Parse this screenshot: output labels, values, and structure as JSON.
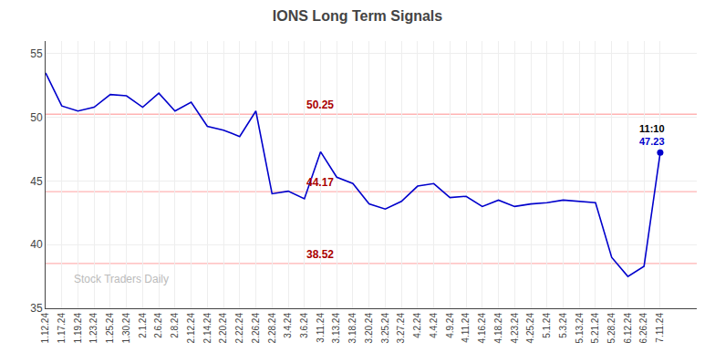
{
  "chart_data": {
    "type": "line",
    "title": "IONS Long Term Signals",
    "categories": [
      "1.12.24",
      "1.17.24",
      "1.19.24",
      "1.23.24",
      "1.25.24",
      "1.30.24",
      "2.1.24",
      "2.6.24",
      "2.8.24",
      "2.12.24",
      "2.14.24",
      "2.20.24",
      "2.22.24",
      "2.26.24",
      "2.28.24",
      "3.4.24",
      "3.6.24",
      "3.11.24",
      "3.13.24",
      "3.18.24",
      "3.20.24",
      "3.25.24",
      "3.27.24",
      "4.2.24",
      "4.4.24",
      "4.9.24",
      "4.11.24",
      "4.16.24",
      "4.18.24",
      "4.23.24",
      "4.25.24",
      "5.1.24",
      "5.3.24",
      "5.13.24",
      "5.21.24",
      "5.28.24",
      "6.12.24",
      "6.26.24",
      "7.11.24"
    ],
    "values": [
      53.5,
      50.9,
      50.5,
      50.8,
      51.8,
      51.7,
      50.8,
      51.9,
      50.5,
      51.2,
      49.3,
      49.0,
      48.5,
      50.5,
      44.0,
      44.2,
      43.6,
      47.3,
      45.3,
      44.8,
      43.2,
      42.8,
      43.4,
      44.6,
      44.8,
      43.7,
      43.8,
      43.0,
      43.5,
      43.0,
      43.2,
      43.3,
      43.5,
      43.4,
      43.3,
      39.0,
      37.5,
      38.3,
      47.23
    ],
    "color": "#0000cc",
    "ylim": [
      35,
      56
    ],
    "yticks": [
      35,
      40,
      45,
      50,
      55
    ],
    "grid": true,
    "hlines": [
      {
        "value": 50.25,
        "label": "50.25",
        "color": "#ffb3b3"
      },
      {
        "value": 44.17,
        "label": "44.17",
        "color": "#ffb3b3"
      },
      {
        "value": 38.52,
        "label": "38.52",
        "color": "#ffb3b3"
      }
    ],
    "annotations": [
      "11:10",
      "47.23",
      "Stock Traders Daily"
    ]
  }
}
